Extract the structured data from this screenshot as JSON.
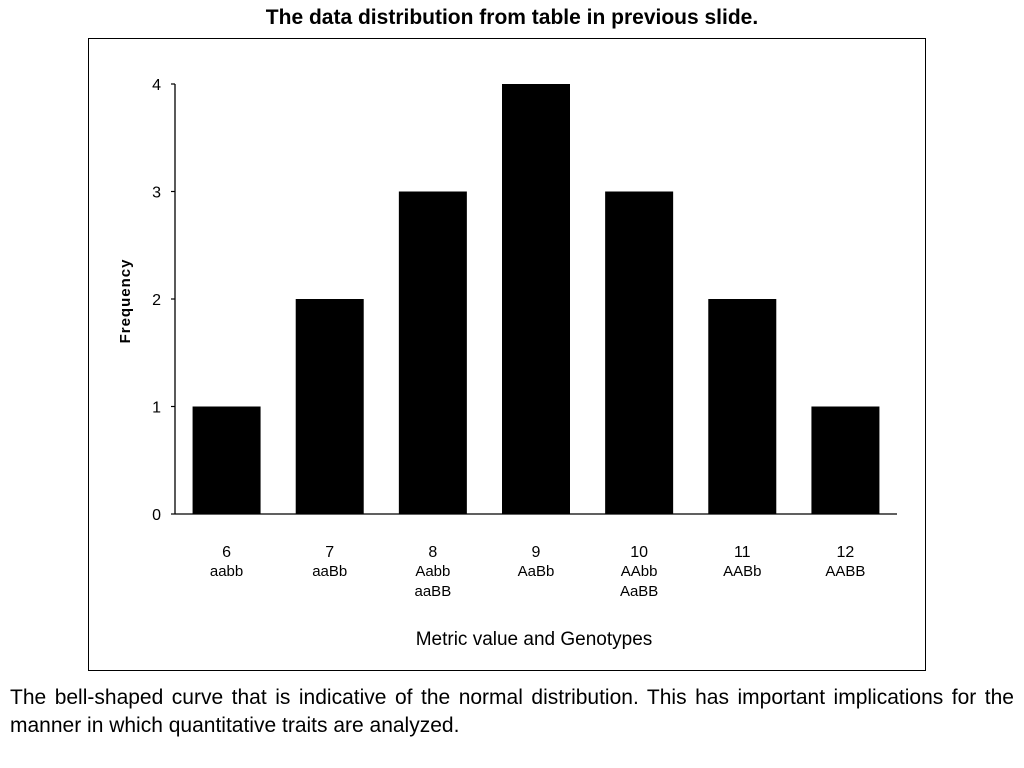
{
  "slide": {
    "title": "The data distribution from table in previous slide.",
    "caption": "The bell-shaped curve that is indicative of the normal distribution. This has important implications for the manner in which quantitative traits are analyzed."
  },
  "chart_data": {
    "type": "bar",
    "categories": [
      "6",
      "7",
      "8",
      "9",
      "10",
      "11",
      "12"
    ],
    "genotypes": [
      [
        "aabb"
      ],
      [
        "aaBb"
      ],
      [
        "Aabb",
        "aaBB"
      ],
      [
        "AaBb"
      ],
      [
        "AAbb",
        "AaBB"
      ],
      [
        "AABb"
      ],
      [
        "AABB"
      ]
    ],
    "values": [
      1,
      2,
      3,
      4,
      3,
      2,
      1
    ],
    "xlabel": "Metric value  and Genotypes",
    "ylabel": "Frequency",
    "ylim": [
      0,
      4
    ],
    "yticks": [
      0,
      1,
      2,
      3,
      4
    ],
    "bar_color": "#000000",
    "grid": false
  }
}
